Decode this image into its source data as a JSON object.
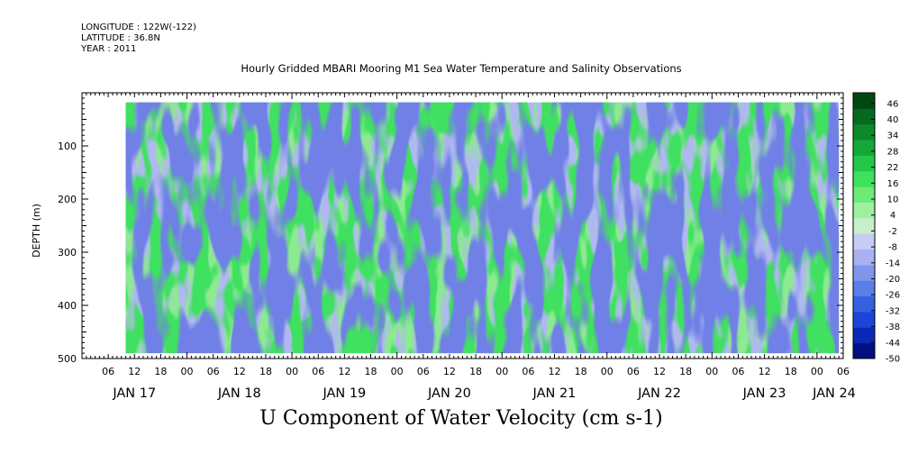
{
  "header": {
    "longitude": "LONGITUDE : 122W(-122)",
    "latitude": "LATITUDE : 36.8N",
    "year": "YEAR : 2011"
  },
  "chart_data": {
    "type": "heatmap",
    "title": "Hourly Gridded MBARI Mooring M1 Sea Water Temperature and Salinity Observations",
    "xlabel": "U Component of Water Velocity (cm s-1)",
    "ylabel": "DEPTH (m)",
    "ylim": [
      500,
      0
    ],
    "y_ticks": [
      100,
      200,
      300,
      400,
      500
    ],
    "y_tick_labels": [
      "100",
      "200",
      "300",
      "400",
      "500"
    ],
    "data_depth_range": [
      18,
      490
    ],
    "x_range_hours": [
      "2011-01-17T00:00",
      "2011-01-24T06:00"
    ],
    "data_time_range": [
      "2011-01-17T10:00",
      "2011-01-24T05:00"
    ],
    "hour_tick_labels": [
      "06",
      "12",
      "18",
      "00",
      "06",
      "12",
      "18",
      "00",
      "06",
      "12",
      "18",
      "00",
      "06",
      "12",
      "18",
      "00",
      "06",
      "12",
      "18",
      "00",
      "06",
      "12",
      "18",
      "00",
      "06",
      "12",
      "18",
      "00",
      "06",
      "12",
      "18",
      "00"
    ],
    "day_labels": [
      "JAN 17",
      "JAN 18",
      "JAN 19",
      "JAN 20",
      "JAN 21",
      "JAN 22",
      "JAN 23",
      "JAN 24"
    ],
    "colorbar": {
      "levels": [
        -50,
        -44,
        -38,
        -32,
        -26,
        -20,
        -14,
        -8,
        -2,
        4,
        10,
        16,
        22,
        28,
        34,
        40,
        46
      ],
      "tick_labels": [
        "-50",
        "-44",
        "-38",
        "-32",
        "-26",
        "-20",
        "-14",
        "-8",
        "-2",
        "4",
        "10",
        "16",
        "22",
        "28",
        "34",
        "40",
        "46"
      ],
      "colors_low": [
        "#001080",
        "#0a28b8",
        "#1a45d8",
        "#3560e0",
        "#5a7ee8",
        "#8096ec",
        "#a8b2f0",
        "#c6ccf4"
      ],
      "colors_high": [
        "#c8f0c8",
        "#9ef09e",
        "#6eea78",
        "#3fe05a",
        "#22c848",
        "#14a838",
        "#0c8a2a",
        "#066a1e",
        "#004812"
      ]
    },
    "colorbar_ticks_shown": [
      46,
      40,
      34,
      28,
      22,
      16,
      10,
      4,
      -2,
      -8,
      -14,
      -20,
      -26,
      -32,
      -38,
      -44,
      -50
    ]
  }
}
